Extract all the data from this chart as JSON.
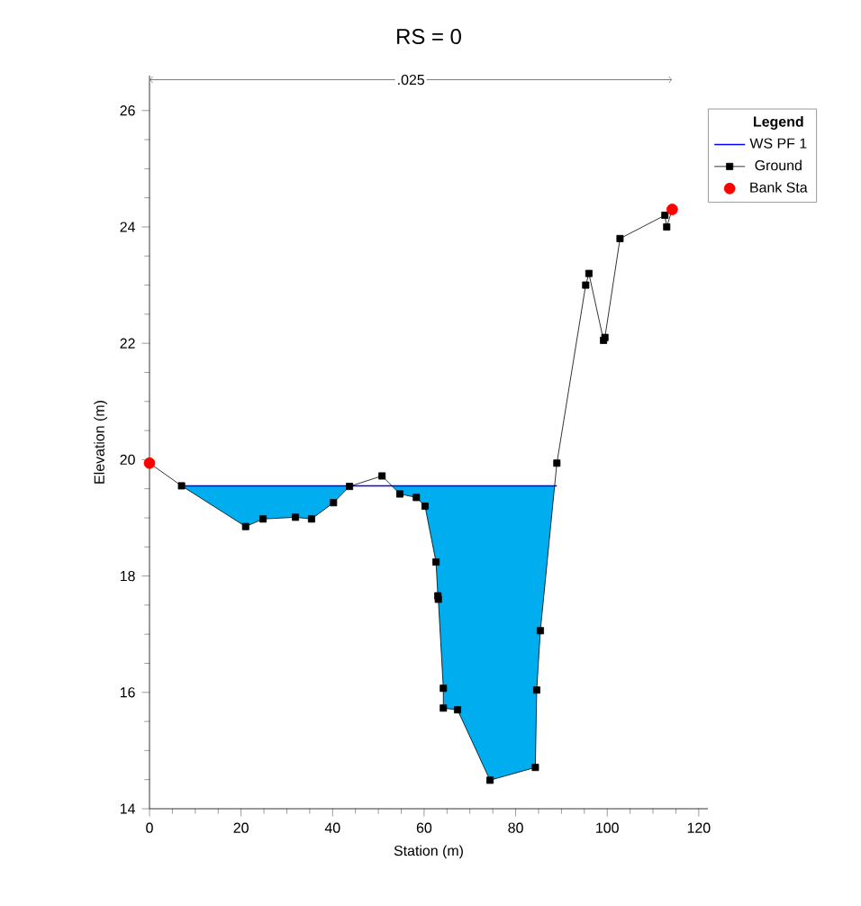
{
  "chart_data": {
    "type": "line",
    "title": "RS = 0",
    "xlabel": "Station (m)",
    "ylabel": "Elevation (m)",
    "legend_title": "Legend",
    "annotations": [
      ".025"
    ],
    "xlim": [
      0,
      122
    ],
    "ylim": [
      14,
      26.6
    ],
    "xticks": [
      0,
      20,
      40,
      60,
      80,
      100,
      120
    ],
    "yticks": [
      14,
      16,
      18,
      20,
      22,
      24,
      26
    ],
    "grid": false,
    "legend": "top right",
    "series": [
      {
        "name": "WS PF 1",
        "type": "area",
        "color": "#0000ff",
        "x": [
          7,
          89
        ],
        "values": [
          19.55,
          19.55
        ],
        "marker": "none"
      },
      {
        "name": "Ground",
        "color": "#000000",
        "marker": "square",
        "x": [
          0,
          7,
          21,
          24.8,
          31.9,
          35.4,
          40.2,
          43.7,
          50.8,
          54.7,
          58.3,
          60.2,
          62.6,
          63,
          63.1,
          64.2,
          64.2,
          67.3,
          74.4,
          84.3,
          84.6,
          85.4,
          89,
          95.3,
          96,
          99.2,
          99.5,
          102.8,
          112.6,
          113,
          114.2
        ],
        "values": [
          19.94,
          19.55,
          18.85,
          18.98,
          19.01,
          18.98,
          19.26,
          19.54,
          19.72,
          19.41,
          19.35,
          19.2,
          18.24,
          17.66,
          17.6,
          16.07,
          15.73,
          15.7,
          14.49,
          14.71,
          16.04,
          17.06,
          19.94,
          23.0,
          23.2,
          22.05,
          22.1,
          23.8,
          24.2,
          24.0,
          24.3
        ]
      },
      {
        "name": "Bank Sta",
        "type": "scatter",
        "color": "#ff0000",
        "marker": "circle",
        "x": [
          0,
          114.2
        ],
        "values": [
          19.94,
          24.3
        ]
      }
    ]
  }
}
